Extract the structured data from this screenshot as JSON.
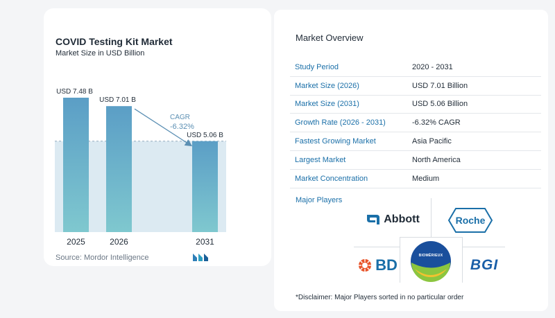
{
  "chart_data": {
    "type": "bar",
    "title": "COVID Testing Kit Market",
    "subtitle": "Market Size in USD Billion",
    "categories": [
      "2025",
      "2026",
      "2031"
    ],
    "values": [
      7.48,
      7.01,
      5.06
    ],
    "data_labels": [
      "USD 7.48 B",
      "USD 7.01 B",
      "USD 5.06 B"
    ],
    "annotation": {
      "label": "CAGR",
      "value": "-6.32%"
    },
    "ylim": [
      0,
      7.48
    ],
    "grid": false,
    "legend": "none",
    "colors": {
      "bar_top": "#5b9ec6",
      "bar_bottom": "#7fc8cf",
      "band": "#dceaf2",
      "arrow": "#5b8fb3",
      "cagr": "#5b8fb3"
    }
  },
  "source": "Source:  Mordor Intelligence",
  "overview": {
    "title": "Market Overview",
    "rows": [
      {
        "label": "Study Period",
        "value": "2020 - 2031"
      },
      {
        "label": "Market Size (2026)",
        "value": "USD 7.01 Billion"
      },
      {
        "label": "Market Size (2031)",
        "value": "USD 5.06 Billion"
      },
      {
        "label": "Growth Rate (2026 - 2031)",
        "value": "-6.32% CAGR"
      },
      {
        "label": "Fastest Growing Market",
        "value": "Asia Pacific"
      },
      {
        "label": "Largest Market",
        "value": "North America"
      },
      {
        "label": "Market Concentration",
        "value": "Medium"
      }
    ]
  },
  "major_players": {
    "title": "Major Players",
    "logos": {
      "abbott": "Abbott",
      "roche": "Roche",
      "bd": "BD",
      "biomerieux": "BIOMÉRIEUX",
      "bgi": "BGI"
    }
  },
  "disclaimer": "*Disclaimer: Major Players sorted in no particular order"
}
